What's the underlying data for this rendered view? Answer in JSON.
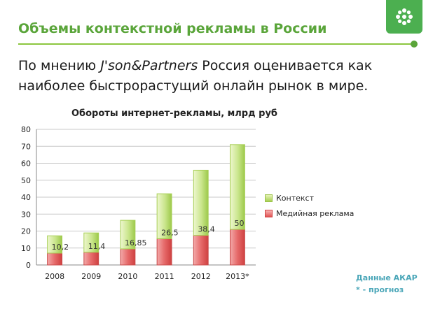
{
  "slide": {
    "title": "Объемы контекстной рекламы в России",
    "intro_prefix": "По мнению ",
    "intro_source": "J'son&Partners",
    "intro_suffix": " Россия оценивается как наиболее быстрорастущий онлайн рынок в мире.",
    "logo_icon": "flower-icon",
    "accent_color": "#5aa53a",
    "note_line1": "Данные АКАР",
    "note_line2": "* - прогноз"
  },
  "chart_data": {
    "type": "bar",
    "stacked": true,
    "title": "Обороты интернет-рекламы, млрд руб",
    "categories": [
      "2008",
      "2009",
      "2010",
      "2011",
      "2012",
      "2013*"
    ],
    "series": [
      {
        "name": "Медийная реклама",
        "values": [
          7,
          7.5,
          9.5,
          15.5,
          17.5,
          21
        ],
        "color": "#e05353",
        "labels": [
          "",
          "",
          "",
          "",
          "",
          ""
        ]
      },
      {
        "name": "Контекст",
        "values": [
          10.2,
          11.4,
          16.85,
          26.5,
          38.4,
          50
        ],
        "color": "#b5d96b",
        "labels": [
          "10,2",
          "11,4",
          "16,85",
          "26,5",
          "38,4",
          "50"
        ]
      }
    ],
    "ylim": [
      0,
      80
    ],
    "yticks": [
      0,
      10,
      20,
      30,
      40,
      50,
      60,
      70,
      80
    ],
    "grid": true,
    "legend_position": "right"
  }
}
